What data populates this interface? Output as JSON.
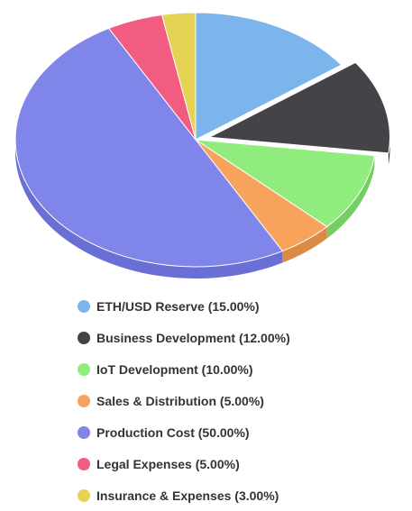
{
  "chart_data": {
    "type": "pie",
    "title": "",
    "three_d": true,
    "legend_position": "bottom",
    "slices": [
      {
        "name": "ETH/USD Reserve",
        "value": 15.0,
        "color": "#7cb5ec",
        "shadow": "#6b9dcd",
        "exploded": false
      },
      {
        "name": "Business Development",
        "value": 12.0,
        "color": "#434348",
        "shadow": "#2b2b2f",
        "exploded": true
      },
      {
        "name": "IoT Development",
        "value": 10.0,
        "color": "#90ed7d",
        "shadow": "#74cf63",
        "exploded": false
      },
      {
        "name": "Sales & Distribution",
        "value": 5.0,
        "color": "#f7a35c",
        "shadow": "#db8a45",
        "exploded": false
      },
      {
        "name": "Production Cost",
        "value": 50.0,
        "color": "#8085e9",
        "shadow": "#6a6fd6",
        "exploded": false
      },
      {
        "name": "Legal Expenses",
        "value": 5.0,
        "color": "#f15c80",
        "shadow": "#d54667",
        "exploded": false
      },
      {
        "name": "Insurance & Expenses",
        "value": 3.0,
        "color": "#e4d354",
        "shadow": "#c8b83d",
        "exploded": false
      }
    ]
  },
  "legend": {
    "items": [
      {
        "label": "ETH/USD Reserve (15.00%)",
        "color": "#7cb5ec"
      },
      {
        "label": "Business Development (12.00%)",
        "color": "#434348"
      },
      {
        "label": "IoT Development (10.00%)",
        "color": "#90ed7d"
      },
      {
        "label": "Sales & Distribution (5.00%)",
        "color": "#f7a35c"
      },
      {
        "label": "Production Cost (50.00%)",
        "color": "#8085e9"
      },
      {
        "label": "Legal Expenses (5.00%)",
        "color": "#f15c80"
      },
      {
        "label": "Insurance & Expenses (3.00%)",
        "color": "#e4d354"
      }
    ]
  }
}
